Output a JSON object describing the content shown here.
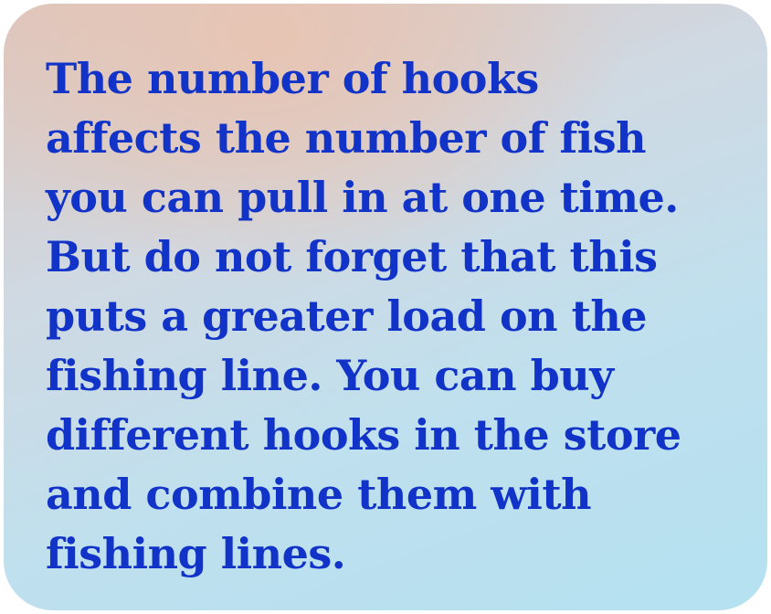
{
  "tip": {
    "text": "The number of hooks\naffects the number of fish\nyou can pull in at one time.\nBut do not forget that this\nputs a greater load on the\nfishing line. You can buy\ndifferent hooks in the store\nand combine them with\nfishing lines."
  },
  "colors": {
    "text": "#1133c8",
    "card_warm": "#e8c4b2",
    "card_cool": "#b4e1f0"
  }
}
